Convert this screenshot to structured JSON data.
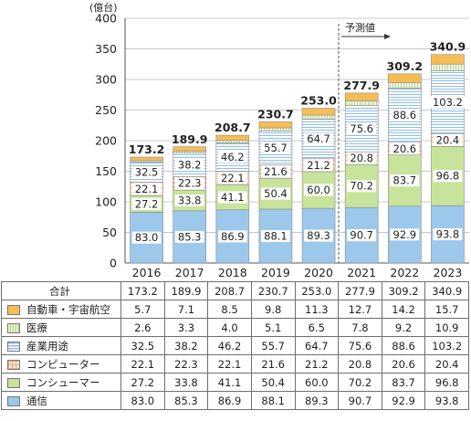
{
  "chart_data": {
    "type": "bar",
    "stacked": true,
    "unit_label": "(億台)",
    "categories": [
      "2016",
      "2017",
      "2018",
      "2019",
      "2020",
      "2021",
      "2022",
      "2023"
    ],
    "ylim": [
      0,
      400
    ],
    "yticks": [
      0,
      50,
      100,
      150,
      200,
      250,
      300,
      350,
      400
    ],
    "forecast_label": "予測値",
    "forecast_start_index": 5,
    "grid": true,
    "series": [
      {
        "name": "通信",
        "color": "#9cc8ec",
        "pattern": "plain",
        "values": [
          83.0,
          85.3,
          86.9,
          88.1,
          89.3,
          90.7,
          92.9,
          93.8
        ]
      },
      {
        "name": "コンシューマー",
        "color": "#c7e49a",
        "pattern": "plain",
        "values": [
          27.2,
          33.8,
          41.1,
          50.4,
          60.0,
          70.2,
          83.7,
          96.8
        ]
      },
      {
        "name": "コンピューター",
        "color": "#f6d1b3",
        "pattern": "grid",
        "values": [
          22.1,
          22.3,
          22.1,
          21.6,
          21.2,
          20.8,
          20.6,
          20.4
        ]
      },
      {
        "name": "産業用途",
        "color": "#d8e8f8",
        "pattern": "hlines",
        "values": [
          32.5,
          38.2,
          46.2,
          55.7,
          64.7,
          75.6,
          88.6,
          103.2
        ]
      },
      {
        "name": "医療",
        "color": "#e4f0c4",
        "pattern": "vlines",
        "values": [
          2.6,
          3.3,
          4.0,
          5.1,
          6.5,
          7.8,
          9.2,
          10.9
        ]
      },
      {
        "name": "自動車・宇宙航空",
        "color": "#f7bd55",
        "pattern": "plain",
        "values": [
          5.7,
          7.1,
          8.5,
          9.8,
          11.3,
          12.7,
          14.2,
          15.7
        ]
      }
    ],
    "totals": {
      "name": "合計",
      "values": [
        173.2,
        189.9,
        208.7,
        230.7,
        253.0,
        277.9,
        309.2,
        340.9
      ]
    },
    "table_rows": [
      {
        "name": "合計",
        "values": [
          "173.2",
          "189.9",
          "208.7",
          "230.7",
          "253.0",
          "277.9",
          "309.2",
          "340.9"
        ]
      },
      {
        "name": "自動車・宇宙航空",
        "values": [
          "5.7",
          "7.1",
          "8.5",
          "9.8",
          "11.3",
          "12.7",
          "14.2",
          "15.7"
        ]
      },
      {
        "name": "医療",
        "values": [
          "2.6",
          "3.3",
          "4.0",
          "5.1",
          "6.5",
          "7.8",
          "9.2",
          "10.9"
        ]
      },
      {
        "name": "産業用途",
        "values": [
          "32.5",
          "38.2",
          "46.2",
          "55.7",
          "64.7",
          "75.6",
          "88.6",
          "103.2"
        ]
      },
      {
        "name": "コンピューター",
        "values": [
          "22.1",
          "22.3",
          "22.1",
          "21.6",
          "21.2",
          "20.8",
          "20.6",
          "20.4"
        ]
      },
      {
        "name": "コンシューマー",
        "values": [
          "27.2",
          "33.8",
          "41.1",
          "50.4",
          "60.0",
          "70.2",
          "83.7",
          "96.8"
        ]
      },
      {
        "name": "通信",
        "values": [
          "83.0",
          "85.3",
          "86.9",
          "88.1",
          "89.3",
          "90.7",
          "92.9",
          "93.8"
        ]
      }
    ]
  }
}
